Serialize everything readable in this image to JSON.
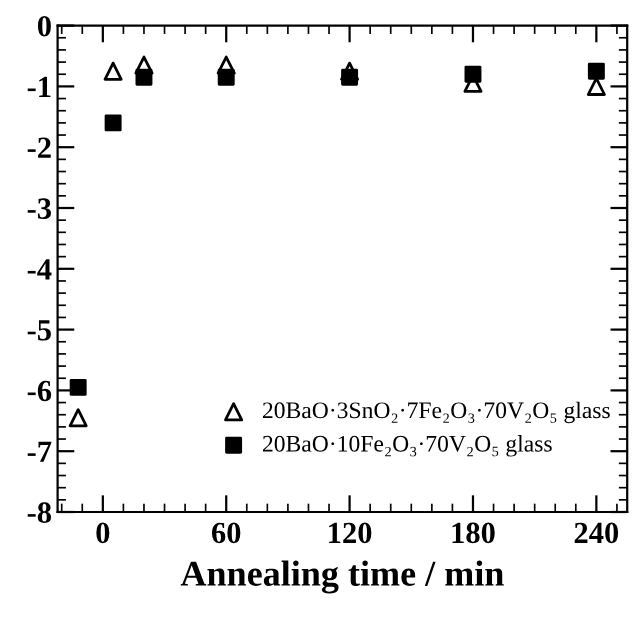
{
  "chart_data": {
    "type": "scatter",
    "xlabel": "Annealing time / min",
    "x": [
      -12,
      5,
      20,
      60,
      120,
      180,
      240
    ],
    "series": [
      {
        "name": "20BaO·3SnO₂·7Fe₂O₃·70V₂O₅ glass",
        "color": "#000000",
        "marker": "triangle",
        "values": [
          -6.45,
          -0.75,
          -0.65,
          -0.65,
          -0.75,
          -0.95,
          -1.0
        ]
      },
      {
        "name": "20BaO·10Fe₂O₃·70V₂O₅ glass",
        "color": "#000000",
        "marker": "square",
        "values": [
          -5.95,
          -1.6,
          -0.85,
          -0.85,
          -0.85,
          -0.8,
          -0.75
        ]
      }
    ],
    "xlim": [
      -22,
      255
    ],
    "xticks": [
      0,
      60,
      120,
      180,
      240
    ],
    "ylim": [
      -8,
      0
    ],
    "yticks": [
      0,
      -1,
      -2,
      -3,
      -4,
      -5,
      -6,
      -7,
      -8
    ],
    "grid": false,
    "legend": "bottom right"
  }
}
